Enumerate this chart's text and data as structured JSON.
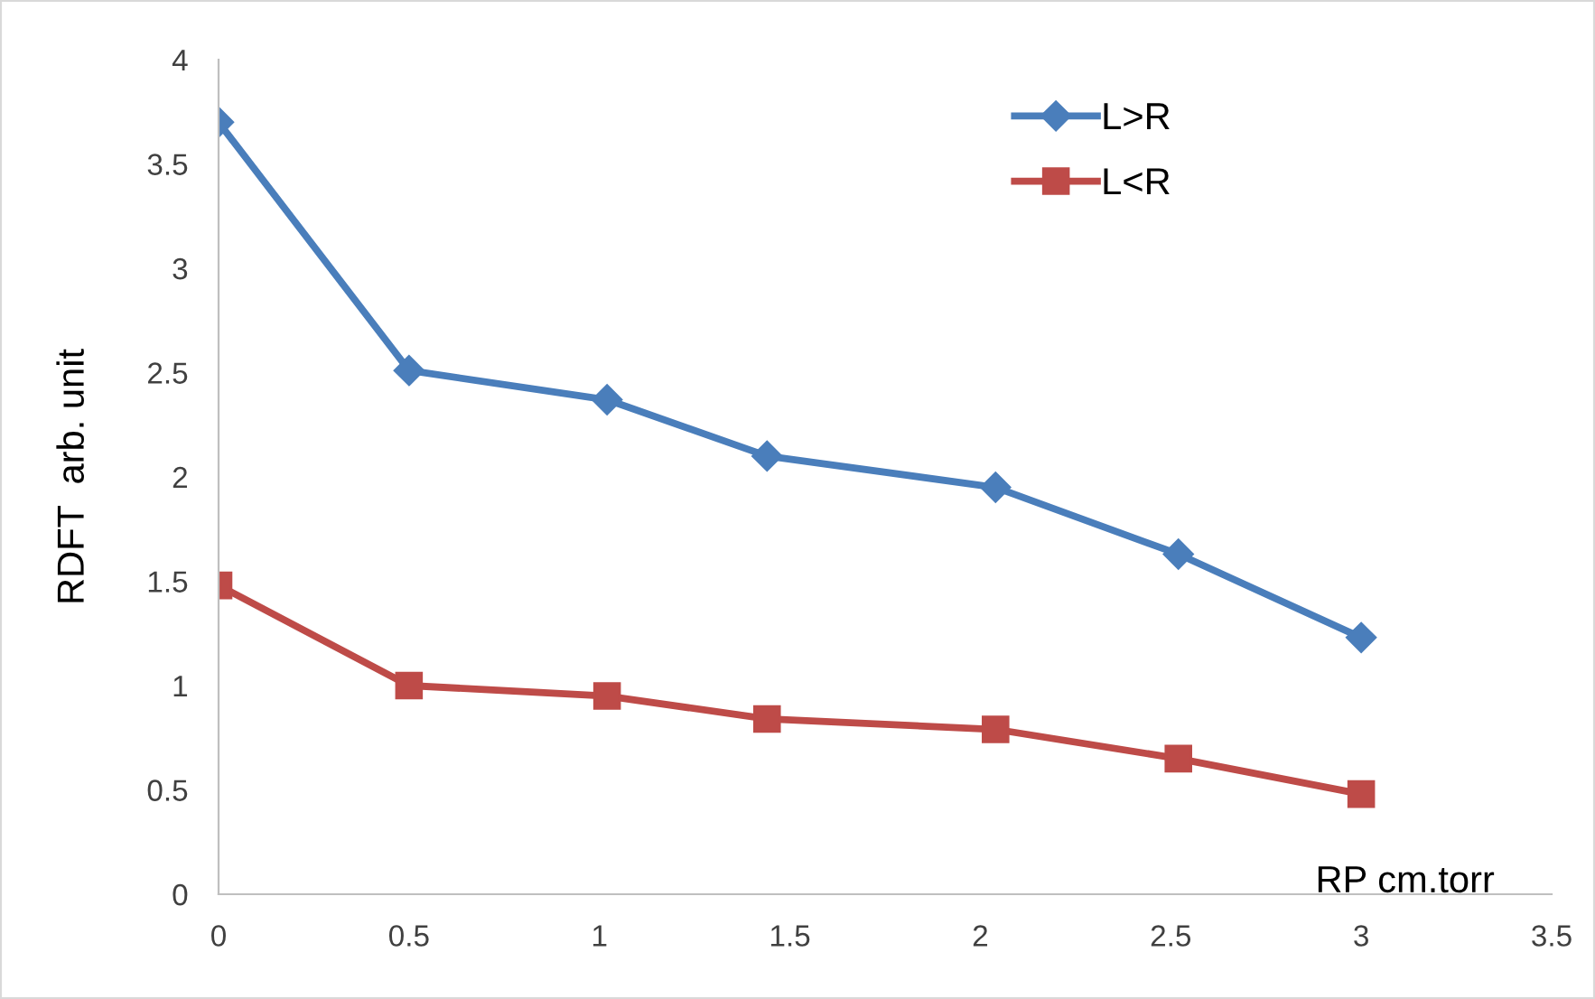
{
  "chart_data": {
    "type": "line",
    "xlabel": "RP cm.torr",
    "ylabel": "RDFT  arb. unit",
    "x": [
      0,
      0.5,
      1.02,
      1.44,
      2.04,
      2.52,
      3.0
    ],
    "series": [
      {
        "name": "L>R",
        "color": "#4a7ebb",
        "marker": "diamond",
        "values": [
          3.7,
          2.51,
          2.37,
          2.1,
          1.95,
          1.63,
          1.23
        ]
      },
      {
        "name": "L<R",
        "color": "#be4b48",
        "marker": "square",
        "values": [
          1.48,
          1.0,
          0.95,
          0.84,
          0.79,
          0.65,
          0.48
        ]
      }
    ],
    "xlim": [
      0,
      3.5
    ],
    "xticks": [
      0,
      0.5,
      1,
      1.5,
      2,
      2.5,
      3,
      3.5
    ],
    "ylim": [
      0,
      4
    ],
    "yticks": [
      0,
      0.5,
      1,
      1.5,
      2,
      2.5,
      3,
      3.5,
      4
    ],
    "grid": false,
    "legend": "top right",
    "line_style": "solid"
  }
}
